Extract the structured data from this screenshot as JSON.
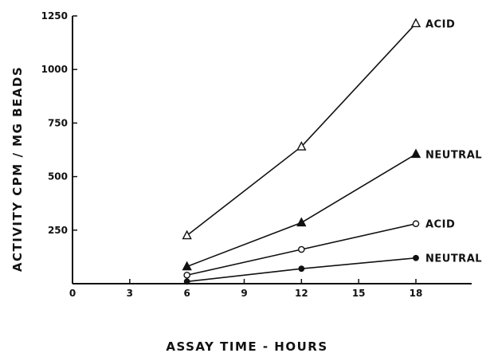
{
  "chart_data": {
    "type": "line",
    "xlabel": "ASSAY TIME - HOURS",
    "ylabel": "ACTIVITY CPM / MG BEADS",
    "xlim": [
      0,
      21
    ],
    "ylim": [
      0,
      1250
    ],
    "x_ticks": [
      "0",
      "3",
      "6",
      "9",
      "12",
      "15",
      "18"
    ],
    "y_ticks": [
      "250",
      "500",
      "750",
      "1000",
      "1250"
    ],
    "grid": false,
    "legend": "none; series labeled at line ends",
    "series": [
      {
        "name": "ACID",
        "marker": "open-triangle",
        "x": [
          6,
          12,
          18
        ],
        "y": [
          225,
          640,
          1215
        ]
      },
      {
        "name": "NEUTRAL",
        "marker": "filled-triangle",
        "x": [
          6,
          12,
          18
        ],
        "y": [
          80,
          285,
          605
        ]
      },
      {
        "name": "ACID",
        "marker": "open-circle",
        "x": [
          6,
          12,
          18
        ],
        "y": [
          40,
          160,
          280
        ]
      },
      {
        "name": "NEUTRAL",
        "marker": "filled-circle",
        "x": [
          6,
          12,
          18
        ],
        "y": [
          10,
          70,
          120
        ]
      }
    ]
  }
}
